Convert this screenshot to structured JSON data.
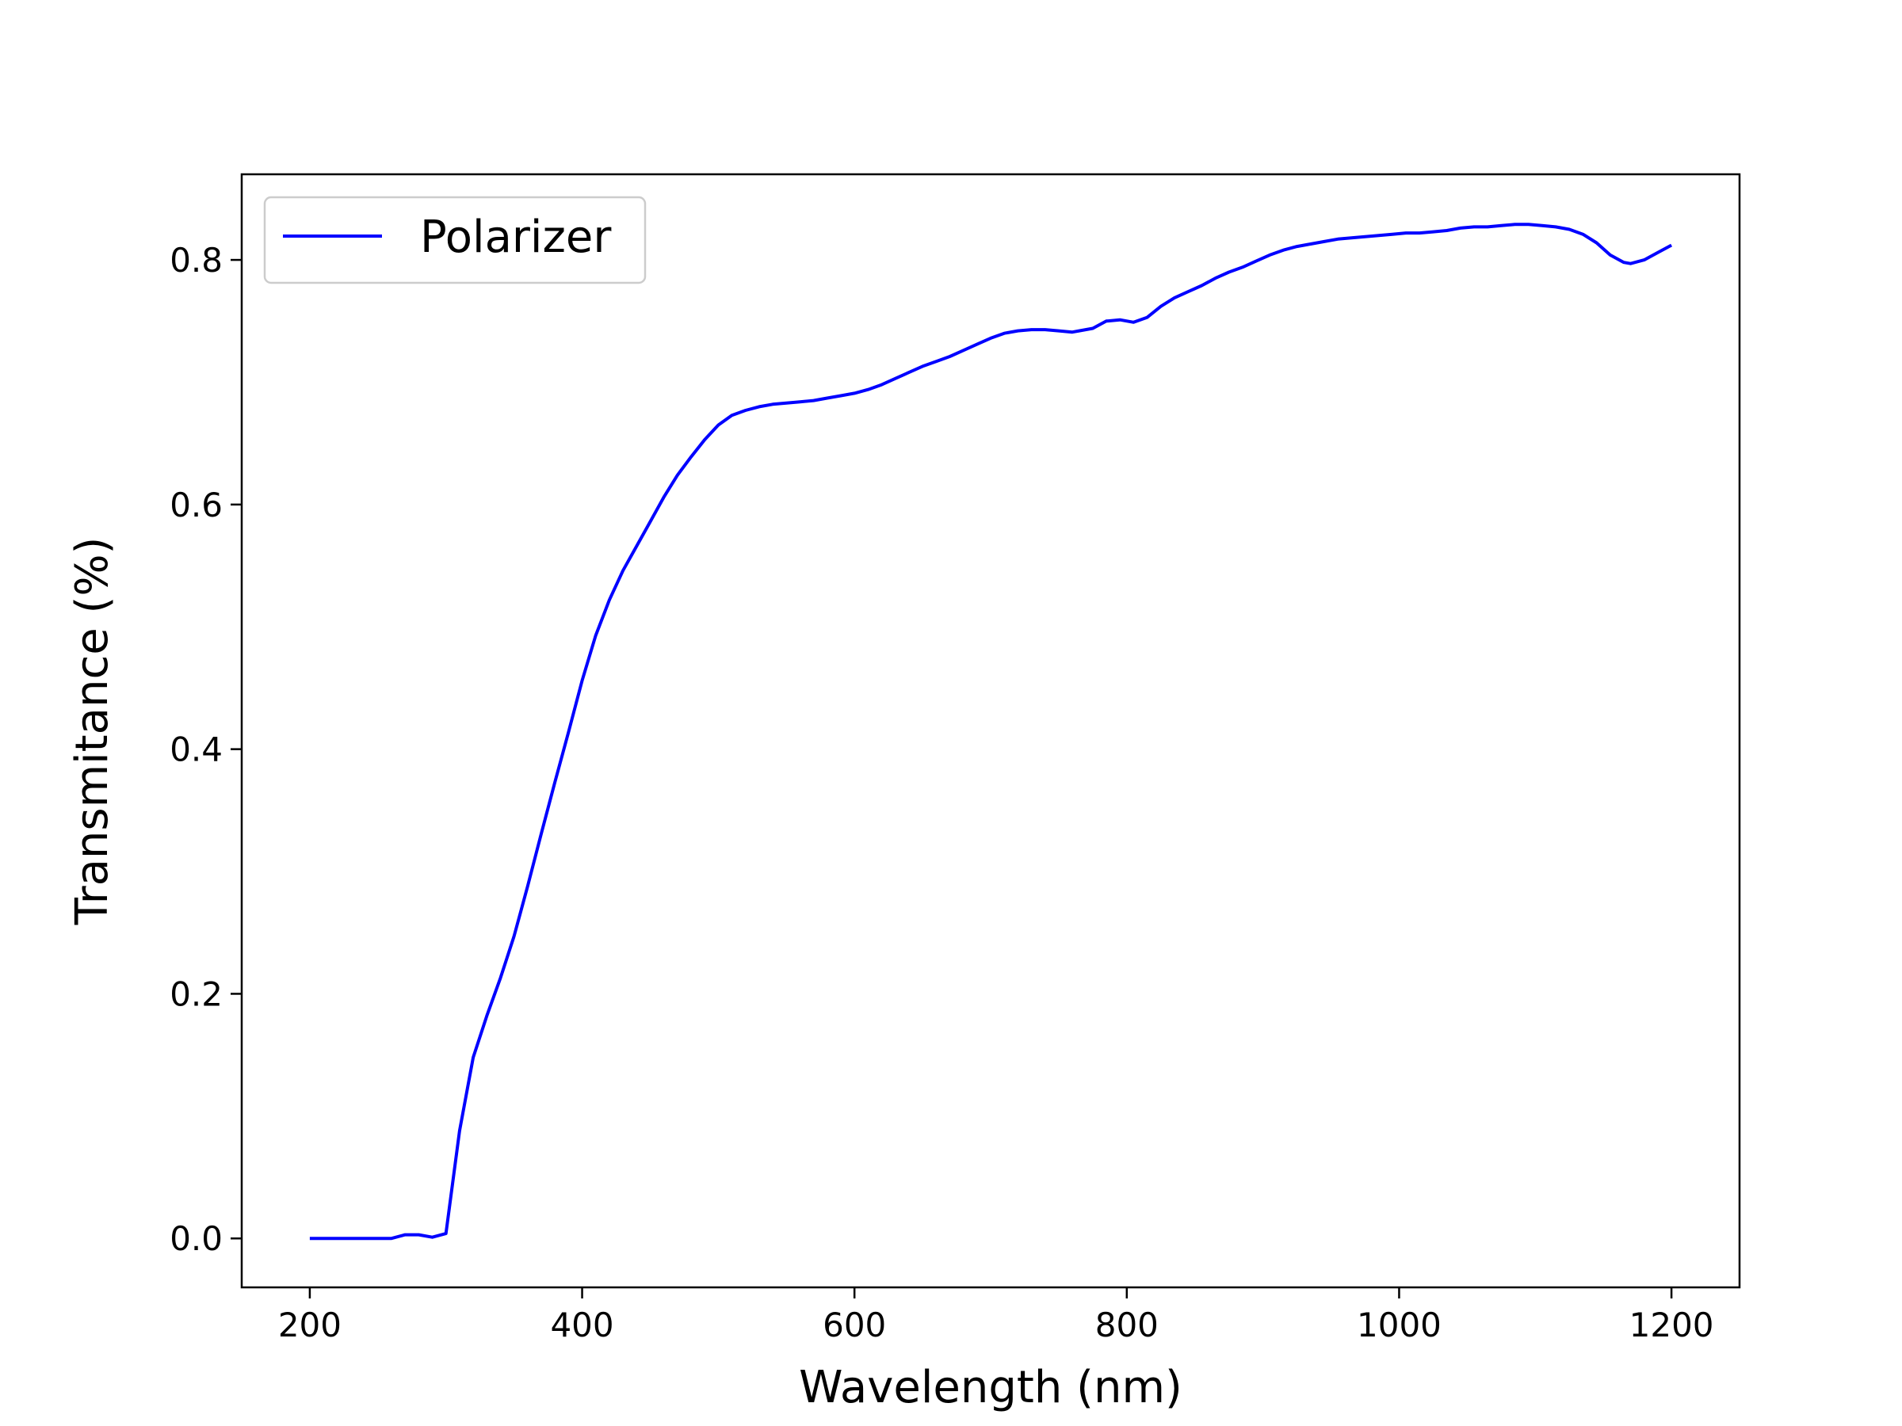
{
  "chart_data": {
    "type": "line",
    "title": "",
    "xlabel": "Wavelength (nm)",
    "ylabel": "Transmitance (%)",
    "xlim": [
      150,
      1250
    ],
    "ylim": [
      -0.04,
      0.87
    ],
    "xticks": [
      200,
      400,
      600,
      800,
      1000,
      1200
    ],
    "xtick_labels": [
      "200",
      "400",
      "600",
      "800",
      "1000",
      "1200"
    ],
    "yticks": [
      0.0,
      0.2,
      0.4,
      0.6,
      0.8
    ],
    "ytick_labels": [
      "0.0",
      "0.2",
      "0.4",
      "0.6",
      "0.8"
    ],
    "grid": false,
    "legend": "upper left",
    "series": [
      {
        "name": "Polarizer",
        "color": "#0000ff",
        "x": [
          200,
          220,
          240,
          260,
          270,
          280,
          290,
          300,
          310,
          320,
          330,
          340,
          350,
          360,
          370,
          380,
          390,
          400,
          410,
          420,
          430,
          440,
          450,
          460,
          470,
          480,
          490,
          500,
          510,
          520,
          530,
          540,
          550,
          560,
          570,
          580,
          590,
          600,
          610,
          620,
          630,
          640,
          650,
          660,
          670,
          680,
          690,
          700,
          710,
          720,
          730,
          740,
          750,
          760,
          765,
          775,
          785,
          795,
          805,
          815,
          825,
          835,
          845,
          855,
          865,
          875,
          885,
          895,
          905,
          915,
          925,
          935,
          945,
          955,
          965,
          975,
          985,
          995,
          1005,
          1015,
          1025,
          1035,
          1045,
          1055,
          1065,
          1075,
          1085,
          1095,
          1105,
          1115,
          1125,
          1135,
          1145,
          1155,
          1165,
          1170,
          1180,
          1190,
          1200
        ],
        "y": [
          0.0,
          0.0,
          0.0,
          0.0,
          0.003,
          0.003,
          0.001,
          0.004,
          0.088,
          0.148,
          0.182,
          0.213,
          0.247,
          0.288,
          0.331,
          0.373,
          0.414,
          0.456,
          0.493,
          0.522,
          0.546,
          0.566,
          0.586,
          0.606,
          0.624,
          0.639,
          0.653,
          0.665,
          0.673,
          0.677,
          0.68,
          0.682,
          0.683,
          0.684,
          0.685,
          0.687,
          0.689,
          0.691,
          0.694,
          0.698,
          0.703,
          0.708,
          0.713,
          0.717,
          0.721,
          0.726,
          0.731,
          0.736,
          0.74,
          0.742,
          0.743,
          0.743,
          0.742,
          0.741,
          0.742,
          0.744,
          0.75,
          0.751,
          0.749,
          0.753,
          0.762,
          0.769,
          0.774,
          0.779,
          0.785,
          0.79,
          0.794,
          0.799,
          0.804,
          0.808,
          0.811,
          0.813,
          0.815,
          0.817,
          0.818,
          0.819,
          0.82,
          0.821,
          0.822,
          0.822,
          0.823,
          0.824,
          0.826,
          0.827,
          0.827,
          0.828,
          0.829,
          0.829,
          0.828,
          0.827,
          0.825,
          0.821,
          0.814,
          0.804,
          0.798,
          0.797,
          0.8,
          0.806,
          0.812
        ]
      }
    ]
  }
}
